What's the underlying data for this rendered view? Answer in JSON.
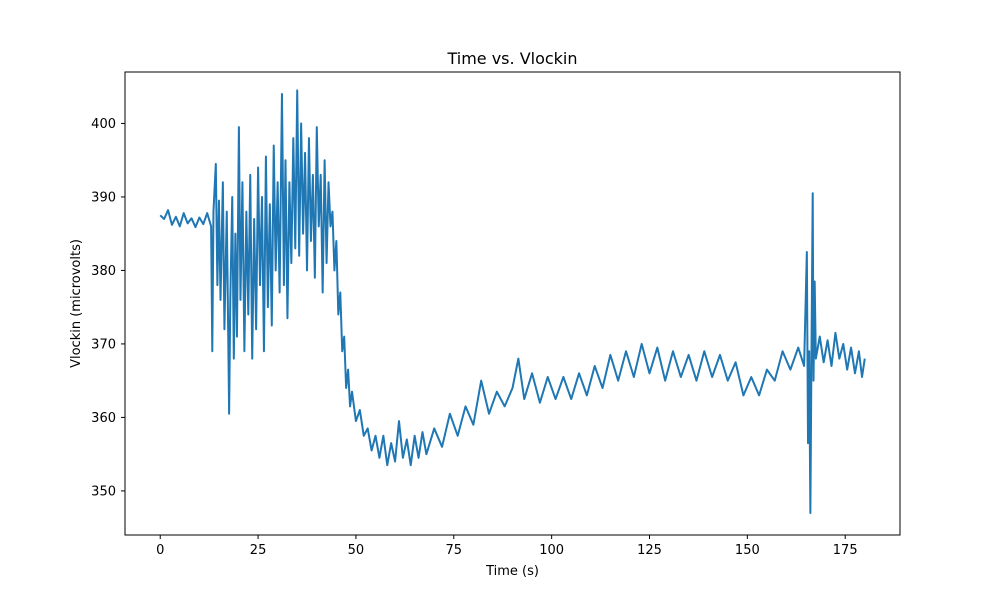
{
  "chart_data": {
    "type": "line",
    "title": "Time vs. Vlockin",
    "xlabel": "Time (s)",
    "ylabel": "Vlockin (microvolts)",
    "xlim": [
      -9,
      189
    ],
    "ylim": [
      344,
      407
    ],
    "xticks": [
      0,
      25,
      50,
      75,
      100,
      125,
      150,
      175
    ],
    "yticks": [
      350,
      360,
      370,
      380,
      390,
      400
    ],
    "grid": false,
    "legend": "none",
    "series": [
      {
        "color": "#1f77b4",
        "points": [
          [
            0,
            387.5
          ],
          [
            1,
            387.0
          ],
          [
            2,
            388.2
          ],
          [
            3,
            386.2
          ],
          [
            4,
            387.3
          ],
          [
            5,
            386.0
          ],
          [
            6,
            387.8
          ],
          [
            7,
            386.4
          ],
          [
            8,
            387.1
          ],
          [
            9,
            385.9
          ],
          [
            10,
            387.2
          ],
          [
            11,
            386.3
          ],
          [
            12,
            387.8
          ],
          [
            13,
            386.0
          ],
          [
            13.3,
            369.0
          ],
          [
            13.6,
            388.0
          ],
          [
            14.2,
            394.5
          ],
          [
            14.6,
            378.0
          ],
          [
            15.0,
            389.5
          ],
          [
            15.4,
            376.0
          ],
          [
            16.0,
            392.0
          ],
          [
            16.4,
            372.0
          ],
          [
            17.0,
            388.0
          ],
          [
            17.4,
            370.0
          ],
          [
            17.6,
            360.5
          ],
          [
            17.9,
            376.0
          ],
          [
            18.4,
            390.0
          ],
          [
            18.8,
            368.0
          ],
          [
            19.2,
            385.0
          ],
          [
            19.6,
            371.0
          ],
          [
            20.1,
            399.5
          ],
          [
            20.5,
            376.0
          ],
          [
            21.0,
            392.0
          ],
          [
            21.5,
            369.0
          ],
          [
            22.0,
            388.0
          ],
          [
            22.5,
            374.0
          ],
          [
            23.0,
            393.0
          ],
          [
            23.5,
            368.0
          ],
          [
            24.0,
            387.0
          ],
          [
            24.5,
            372.0
          ],
          [
            25.0,
            394.0
          ],
          [
            25.5,
            378.0
          ],
          [
            26.0,
            390.0
          ],
          [
            26.5,
            369.0
          ],
          [
            27.0,
            395.5
          ],
          [
            27.5,
            375.0
          ],
          [
            28.0,
            389.0
          ],
          [
            28.5,
            372.5
          ],
          [
            29.0,
            397.0
          ],
          [
            29.5,
            380.0
          ],
          [
            30.0,
            392.0
          ],
          [
            30.5,
            377.0
          ],
          [
            31.1,
            404.0
          ],
          [
            31.6,
            378.0
          ],
          [
            32.0,
            395.0
          ],
          [
            32.5,
            373.5
          ],
          [
            33.0,
            392.0
          ],
          [
            33.5,
            381.0
          ],
          [
            34.0,
            398.0
          ],
          [
            34.5,
            383.0
          ],
          [
            35.0,
            404.5
          ],
          [
            35.5,
            382.0
          ],
          [
            36.0,
            400.0
          ],
          [
            36.5,
            385.0
          ],
          [
            37.0,
            396.0
          ],
          [
            37.5,
            380.0
          ],
          [
            38.0,
            398.0
          ],
          [
            38.5,
            384.0
          ],
          [
            39.0,
            393.0
          ],
          [
            39.5,
            379.0
          ],
          [
            40.0,
            399.5
          ],
          [
            40.5,
            386.0
          ],
          [
            41.0,
            393.0
          ],
          [
            41.5,
            377.0
          ],
          [
            42.0,
            395.0
          ],
          [
            42.5,
            381.0
          ],
          [
            43.0,
            392.0
          ],
          [
            43.5,
            386.0
          ],
          [
            44.0,
            388.0
          ],
          [
            44.5,
            380.0
          ],
          [
            45.0,
            384.0
          ],
          [
            45.5,
            374.0
          ],
          [
            46.0,
            377.0
          ],
          [
            46.5,
            369.0
          ],
          [
            47.0,
            371.0
          ],
          [
            47.5,
            364.0
          ],
          [
            48.0,
            366.5
          ],
          [
            48.5,
            361.5
          ],
          [
            49.0,
            363.5
          ],
          [
            50.0,
            359.5
          ],
          [
            51.0,
            361.0
          ],
          [
            52.0,
            357.5
          ],
          [
            53.0,
            358.5
          ],
          [
            54.0,
            355.5
          ],
          [
            55.0,
            357.5
          ],
          [
            56.0,
            354.5
          ],
          [
            57.0,
            357.5
          ],
          [
            58.0,
            353.5
          ],
          [
            59.0,
            356.5
          ],
          [
            60.0,
            354.0
          ],
          [
            61.0,
            359.5
          ],
          [
            62.0,
            354.5
          ],
          [
            63.0,
            357.0
          ],
          [
            64.0,
            353.5
          ],
          [
            65.0,
            357.5
          ],
          [
            66.0,
            354.5
          ],
          [
            67.0,
            358.0
          ],
          [
            68.0,
            355.0
          ],
          [
            70.0,
            358.5
          ],
          [
            72.0,
            356.0
          ],
          [
            74.0,
            360.5
          ],
          [
            76.0,
            357.5
          ],
          [
            78.0,
            361.5
          ],
          [
            80.0,
            359.0
          ],
          [
            82.0,
            365.0
          ],
          [
            84.0,
            360.5
          ],
          [
            86.0,
            363.5
          ],
          [
            88.0,
            361.5
          ],
          [
            90.0,
            364.0
          ],
          [
            91.5,
            368.0
          ],
          [
            93.0,
            362.5
          ],
          [
            95.0,
            366.0
          ],
          [
            97.0,
            362.0
          ],
          [
            99.0,
            365.5
          ],
          [
            101.0,
            362.5
          ],
          [
            103.0,
            365.5
          ],
          [
            105.0,
            362.5
          ],
          [
            107.0,
            366.0
          ],
          [
            109.0,
            363.0
          ],
          [
            111.0,
            367.0
          ],
          [
            113.0,
            364.0
          ],
          [
            115.0,
            368.5
          ],
          [
            117.0,
            365.0
          ],
          [
            119.0,
            369.0
          ],
          [
            121.0,
            365.5
          ],
          [
            123.0,
            370.0
          ],
          [
            125.0,
            366.0
          ],
          [
            127.0,
            369.5
          ],
          [
            129.0,
            365.0
          ],
          [
            131.0,
            369.0
          ],
          [
            133.0,
            365.5
          ],
          [
            135.0,
            368.5
          ],
          [
            137.0,
            365.0
          ],
          [
            139.0,
            369.0
          ],
          [
            141.0,
            365.5
          ],
          [
            143.0,
            368.5
          ],
          [
            145.0,
            365.0
          ],
          [
            147.0,
            367.5
          ],
          [
            149.0,
            363.0
          ],
          [
            151.0,
            365.5
          ],
          [
            153.0,
            363.0
          ],
          [
            155.0,
            366.5
          ],
          [
            157.0,
            365.0
          ],
          [
            159.0,
            369.0
          ],
          [
            161.0,
            366.5
          ],
          [
            163.0,
            369.5
          ],
          [
            164.5,
            367.0
          ],
          [
            165.2,
            382.5
          ],
          [
            165.5,
            356.5
          ],
          [
            165.8,
            369.0
          ],
          [
            166.1,
            347.0
          ],
          [
            166.4,
            370.0
          ],
          [
            166.7,
            390.5
          ],
          [
            166.9,
            365.0
          ],
          [
            167.2,
            378.5
          ],
          [
            167.5,
            368.0
          ],
          [
            168.5,
            371.0
          ],
          [
            169.5,
            367.5
          ],
          [
            170.5,
            370.5
          ],
          [
            171.5,
            367.0
          ],
          [
            172.5,
            371.5
          ],
          [
            173.5,
            368.0
          ],
          [
            174.5,
            370.0
          ],
          [
            175.5,
            366.5
          ],
          [
            176.5,
            369.5
          ],
          [
            177.5,
            366.0
          ],
          [
            178.5,
            369.0
          ],
          [
            179.3,
            365.5
          ],
          [
            180.0,
            368.0
          ]
        ]
      }
    ]
  }
}
